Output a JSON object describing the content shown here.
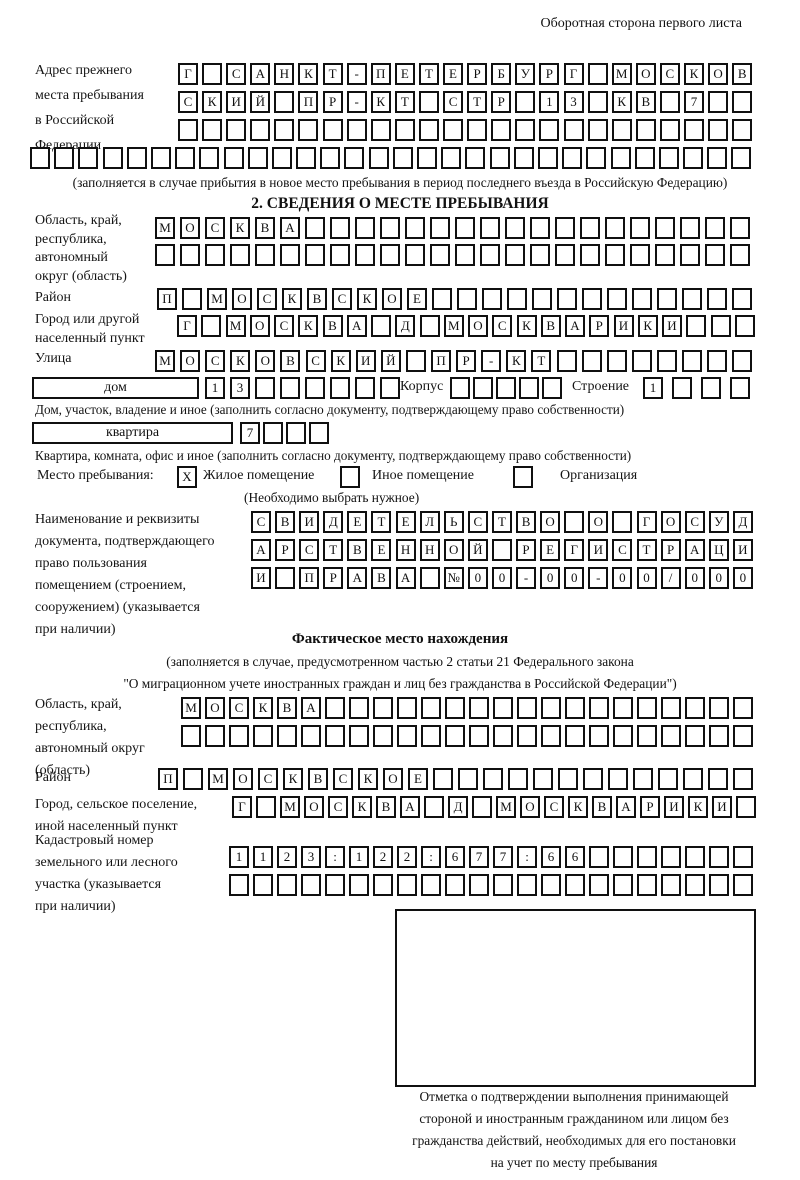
{
  "page_note": "Оборотная сторона первого листа",
  "prev_address": {
    "label": "Адрес прежнего\nместа пребывания\nв Российской\nФедерации",
    "row1": [
      "Г",
      "",
      "С",
      "А",
      "Н",
      "К",
      "Т",
      "-",
      "П",
      "Е",
      "Т",
      "Е",
      "Р",
      "Б",
      "У",
      "Р",
      "Г",
      "",
      "М",
      "О",
      "С",
      "К",
      "О",
      "В"
    ],
    "row2": [
      "С",
      "К",
      "И",
      "Й",
      "",
      "П",
      "Р",
      "-",
      "К",
      "Т",
      "",
      "С",
      "Т",
      "Р",
      "",
      "1",
      "3",
      "",
      "К",
      "В",
      "",
      "7",
      "",
      ""
    ],
    "row3": [
      "",
      "",
      "",
      "",
      "",
      "",
      "",
      "",
      "",
      "",
      "",
      "",
      "",
      "",
      "",
      "",
      "",
      "",
      "",
      "",
      "",
      "",
      "",
      ""
    ],
    "row4": [
      "",
      "",
      "",
      "",
      "",
      "",
      "",
      "",
      "",
      "",
      "",
      "",
      "",
      "",
      "",
      "",
      "",
      "",
      "",
      "",
      "",
      "",
      "",
      "",
      "",
      "",
      "",
      "",
      "",
      ""
    ],
    "note": "(заполняется в случае прибытия в новое место пребывания в период последнего въезда в Российскую Федерацию)"
  },
  "stay_info": {
    "title": "2. СВЕДЕНИЯ О МЕСТЕ ПРЕБЫВАНИЯ",
    "region": {
      "label": "Область, край,\nреспублика,\nавтономный\nокруг (область)",
      "row1": [
        "М",
        "О",
        "С",
        "К",
        "В",
        "А",
        "",
        "",
        "",
        "",
        "",
        "",
        "",
        "",
        "",
        "",
        "",
        "",
        "",
        "",
        "",
        "",
        "",
        ""
      ],
      "row2": [
        "",
        "",
        "",
        "",
        "",
        "",
        "",
        "",
        "",
        "",
        "",
        "",
        "",
        "",
        "",
        "",
        "",
        "",
        "",
        "",
        "",
        "",
        "",
        ""
      ]
    },
    "district": {
      "label": "Район",
      "row": [
        "П",
        "",
        "М",
        "О",
        "С",
        "К",
        "В",
        "С",
        "К",
        "О",
        "Е",
        "",
        "",
        "",
        "",
        "",
        "",
        "",
        "",
        "",
        "",
        "",
        "",
        ""
      ]
    },
    "city": {
      "label": "Город или другой\nнаселенный пункт",
      "row": [
        "Г",
        "",
        "М",
        "О",
        "С",
        "К",
        "В",
        "А",
        "",
        "Д",
        "",
        "М",
        "О",
        "С",
        "К",
        "В",
        "А",
        "Р",
        "И",
        "К",
        "И",
        "",
        "",
        ""
      ]
    },
    "street": {
      "label": "Улица",
      "row": [
        "М",
        "О",
        "С",
        "К",
        "О",
        "В",
        "С",
        "К",
        "И",
        "Й",
        "",
        "П",
        "Р",
        "-",
        "К",
        "Т",
        "",
        "",
        "",
        "",
        "",
        "",
        "",
        ""
      ]
    },
    "house": {
      "field_label": "дом",
      "row": [
        "1",
        "3",
        "",
        "",
        "",
        "",
        "",
        ""
      ],
      "korpus_label": "Корпус",
      "korpus_row": [
        "",
        "",
        "",
        "",
        ""
      ],
      "stroenie_label": "Строение",
      "stroenie_row": [
        "1",
        "",
        "",
        ""
      ],
      "caption": "Дом, участок, владение и иное (заполнить согласно документу, подтверждающему право собственности)"
    },
    "apartment": {
      "field_label": "квартира",
      "row": [
        "7",
        "",
        "",
        ""
      ],
      "caption": "Квартира, комната, офис и иное (заполнить согласно документу, подтверждающему право собственности)"
    },
    "residence": {
      "label": "Место пребывания:",
      "options": [
        {
          "label": "Жилое помещение",
          "mark": "X"
        },
        {
          "label": "Иное помещение",
          "mark": ""
        },
        {
          "label": "Организация",
          "mark": ""
        }
      ],
      "note": "(Необходимо выбрать нужное)"
    },
    "document": {
      "label": "Наименование и реквизиты\nдокумента, подтверждающего\nправо пользования\nпомещением (строением,\nсооружением) (указывается\nпри наличии)",
      "row1": [
        "С",
        "В",
        "И",
        "Д",
        "Е",
        "Т",
        "Е",
        "Л",
        "Ь",
        "С",
        "Т",
        "В",
        "О",
        "",
        "О",
        "",
        "Г",
        "О",
        "С",
        "У",
        "Д"
      ],
      "row2": [
        "А",
        "Р",
        "С",
        "Т",
        "В",
        "Е",
        "Н",
        "Н",
        "О",
        "Й",
        "",
        "Р",
        "Е",
        "Г",
        "И",
        "С",
        "Т",
        "Р",
        "А",
        "Ц",
        "И"
      ],
      "row3": [
        "И",
        "",
        "П",
        "Р",
        "А",
        "В",
        "А",
        "",
        "№",
        "0",
        "0",
        "-",
        "0",
        "0",
        "-",
        "0",
        "0",
        "/",
        "0",
        "0",
        "0"
      ]
    }
  },
  "actual_location": {
    "title": "Фактическое место нахождения",
    "note": "(заполняется в случае, предусмотренном частью 2 статьи 21 Федерального закона\n\"О миграционном учете иностранных граждан и лиц без гражданства в Российской Федерации\")",
    "region": {
      "label": "Область, край,\nреспублика,\nавтономный округ\n(область)",
      "row1": [
        "М",
        "О",
        "С",
        "К",
        "В",
        "А",
        "",
        "",
        "",
        "",
        "",
        "",
        "",
        "",
        "",
        "",
        "",
        "",
        "",
        "",
        "",
        "",
        "",
        ""
      ],
      "row2": [
        "",
        "",
        "",
        "",
        "",
        "",
        "",
        "",
        "",
        "",
        "",
        "",
        "",
        "",
        "",
        "",
        "",
        "",
        "",
        "",
        "",
        "",
        "",
        ""
      ]
    },
    "district": {
      "label": "Район",
      "row": [
        "П",
        "",
        "М",
        "О",
        "С",
        "К",
        "В",
        "С",
        "К",
        "О",
        "Е",
        "",
        "",
        "",
        "",
        "",
        "",
        "",
        "",
        "",
        "",
        "",
        "",
        ""
      ]
    },
    "city": {
      "label": "Город, сельское поселение,\nиной населенный пункт",
      "row": [
        "Г",
        "",
        "М",
        "О",
        "С",
        "К",
        "В",
        "А",
        "",
        "Д",
        "",
        "М",
        "О",
        "С",
        "К",
        "В",
        "А",
        "Р",
        "И",
        "К",
        "И",
        ""
      ]
    },
    "cadastral": {
      "label": "Кадастровый номер\nземельного или лесного\nучастка (указывается\nпри наличии)",
      "row1": [
        "1",
        "1",
        "2",
        "3",
        ":",
        "1",
        "2",
        "2",
        ":",
        "6",
        "7",
        "7",
        ":",
        "6",
        "6",
        "",
        "",
        "",
        "",
        "",
        "",
        ""
      ],
      "row2": [
        "",
        "",
        "",
        "",
        "",
        "",
        "",
        "",
        "",
        "",
        "",
        "",
        "",
        "",
        "",
        "",
        "",
        "",
        "",
        "",
        "",
        ""
      ]
    },
    "stamp_caption": "Отметка о подтверждении выполнения принимающей\nстороной и иностранным гражданином или лицом без\nгражданства действий, необходимых для его постановки\nна учет по месту пребывания"
  }
}
